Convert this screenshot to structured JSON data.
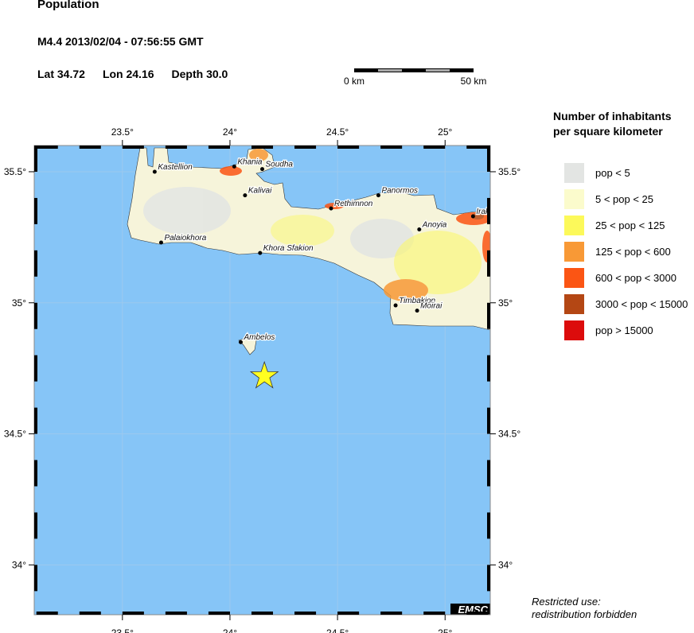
{
  "title": "Population",
  "event": "M4.4  2013/02/04 - 07:56:55 GMT",
  "location": {
    "lat": "Lat 34.72",
    "lon": "Lon  24.16",
    "depth": "Depth  30.0"
  },
  "scale_bar": {
    "start": "0 km",
    "end": "50 km"
  },
  "map": {
    "extent": {
      "lon": [
        23.09,
        25.21
      ],
      "lat": [
        33.81,
        35.6
      ]
    },
    "lon_ticks": [
      "23.5°",
      "24°",
      "24.5°",
      "25°"
    ],
    "lat_ticks": [
      "35.5°",
      "35°",
      "34.5°",
      "34°"
    ],
    "sea_color": "#86c5f7",
    "epicenter": {
      "lon": 24.16,
      "lat": 34.72,
      "marker": "star-icon",
      "color": "#ffff20"
    },
    "cities": [
      {
        "name": "Kastellion",
        "lon": 23.65,
        "lat": 35.5
      },
      {
        "name": "Khania",
        "lon": 24.02,
        "lat": 35.52
      },
      {
        "name": "Soudha",
        "lon": 24.15,
        "lat": 35.51
      },
      {
        "name": "Kalivai",
        "lon": 24.07,
        "lat": 35.41
      },
      {
        "name": "Rethimnon",
        "lon": 24.47,
        "lat": 35.36
      },
      {
        "name": "Panormos",
        "lon": 24.69,
        "lat": 35.41
      },
      {
        "name": "Irak",
        "lon": 25.13,
        "lat": 35.33
      },
      {
        "name": "Anoyia",
        "lon": 24.88,
        "lat": 35.28
      },
      {
        "name": "Palaiokhora",
        "lon": 23.68,
        "lat": 35.23
      },
      {
        "name": "Khora Sfakion",
        "lon": 24.14,
        "lat": 35.19
      },
      {
        "name": "Timbakion",
        "lon": 24.77,
        "lat": 34.99
      },
      {
        "name": "Moirai",
        "lon": 24.87,
        "lat": 34.97
      },
      {
        "name": "Ambelos",
        "lon": 24.05,
        "lat": 34.85
      }
    ],
    "watermark": "EMSC"
  },
  "legend": {
    "title_line1": "Number of inhabitants",
    "title_line2": "per square kilometer",
    "items": [
      {
        "label": "pop < 5",
        "color": "#e3e5e3"
      },
      {
        "label": "5 < pop < 25",
        "color": "#fbfbcc"
      },
      {
        "label": "25 < pop < 125",
        "color": "#fcf95a"
      },
      {
        "label": "125 < pop < 600",
        "color": "#f89936"
      },
      {
        "label": "600 < pop < 3000",
        "color": "#fb5514"
      },
      {
        "label": "3000 < pop < 15000",
        "color": "#b44714"
      },
      {
        "label": "pop > 15000",
        "color": "#dc0c0c"
      }
    ]
  },
  "restricted_line1": "Restricted use:",
  "restricted_line2": "redistribution forbidden"
}
